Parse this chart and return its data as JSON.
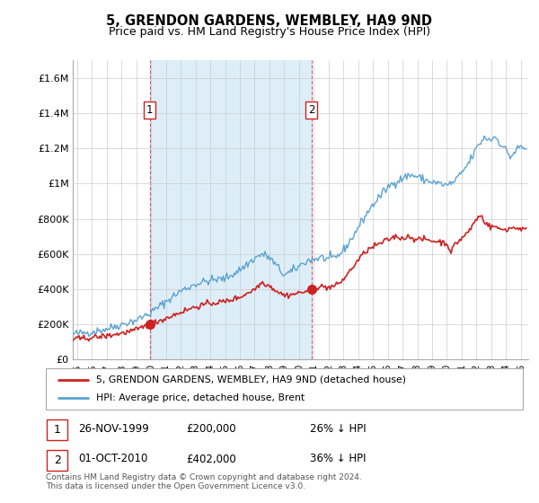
{
  "title": "5, GRENDON GARDENS, WEMBLEY, HA9 9ND",
  "subtitle": "Price paid vs. HM Land Registry's House Price Index (HPI)",
  "title_fontsize": 10.5,
  "subtitle_fontsize": 9,
  "ylabel_ticks": [
    "£0",
    "£200K",
    "£400K",
    "£600K",
    "£800K",
    "£1M",
    "£1.2M",
    "£1.4M",
    "£1.6M"
  ],
  "ytick_vals": [
    0,
    200000,
    400000,
    600000,
    800000,
    1000000,
    1200000,
    1400000,
    1600000
  ],
  "ylim": [
    0,
    1700000
  ],
  "xlim_start": 1994.7,
  "xlim_end": 2025.5,
  "hpi_color": "#5ba3d0",
  "hpi_fill_color": "#d0e8f5",
  "price_color": "#cc2222",
  "sale1_year": 1999.9,
  "sale1_price": 200000,
  "sale2_year": 2010.83,
  "sale2_price": 402000,
  "legend_entry1": "5, GRENDON GARDENS, WEMBLEY, HA9 9ND (detached house)",
  "legend_entry2": "HPI: Average price, detached house, Brent",
  "note1_label": "1",
  "note1_date": "26-NOV-1999",
  "note1_price": "£200,000",
  "note1_hpi": "26% ↓ HPI",
  "note2_label": "2",
  "note2_date": "01-OCT-2010",
  "note2_price": "£402,000",
  "note2_hpi": "36% ↓ HPI",
  "footer": "Contains HM Land Registry data © Crown copyright and database right 2024.\nThis data is licensed under the Open Government Licence v3.0.",
  "background_color": "#ffffff",
  "grid_color": "#cccccc",
  "shade_color": "#ddeef8"
}
